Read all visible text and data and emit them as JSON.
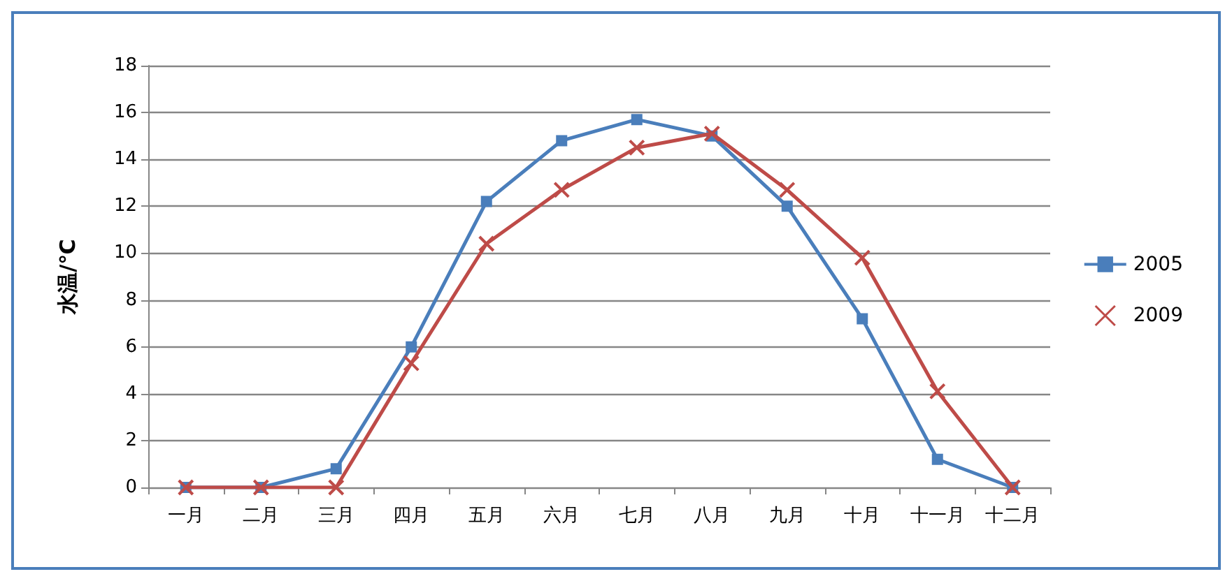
{
  "chart_data": {
    "type": "line",
    "ylabel": "水温/℃",
    "categories": [
      "一月",
      "二月",
      "三月",
      "四月",
      "五月",
      "六月",
      "七月",
      "八月",
      "九月",
      "十月",
      "十一月",
      "十二月"
    ],
    "series": [
      {
        "name": "2005",
        "color": "#4a7ebb",
        "marker": "square",
        "values": [
          0,
          0,
          0.8,
          6,
          12.2,
          14.8,
          15.7,
          15.0,
          12.0,
          7.2,
          1.2,
          0
        ]
      },
      {
        "name": "2009",
        "color": "#be4b48",
        "marker": "cross",
        "values": [
          0,
          0,
          0,
          5.3,
          10.4,
          12.7,
          14.5,
          15.1,
          12.7,
          9.8,
          4.1,
          0
        ]
      }
    ],
    "ylim": [
      0,
      18
    ],
    "yticks": [
      0,
      2,
      4,
      6,
      8,
      10,
      12,
      14,
      16,
      18
    ],
    "grid": "y",
    "legend": "right",
    "line_style": "solid"
  }
}
